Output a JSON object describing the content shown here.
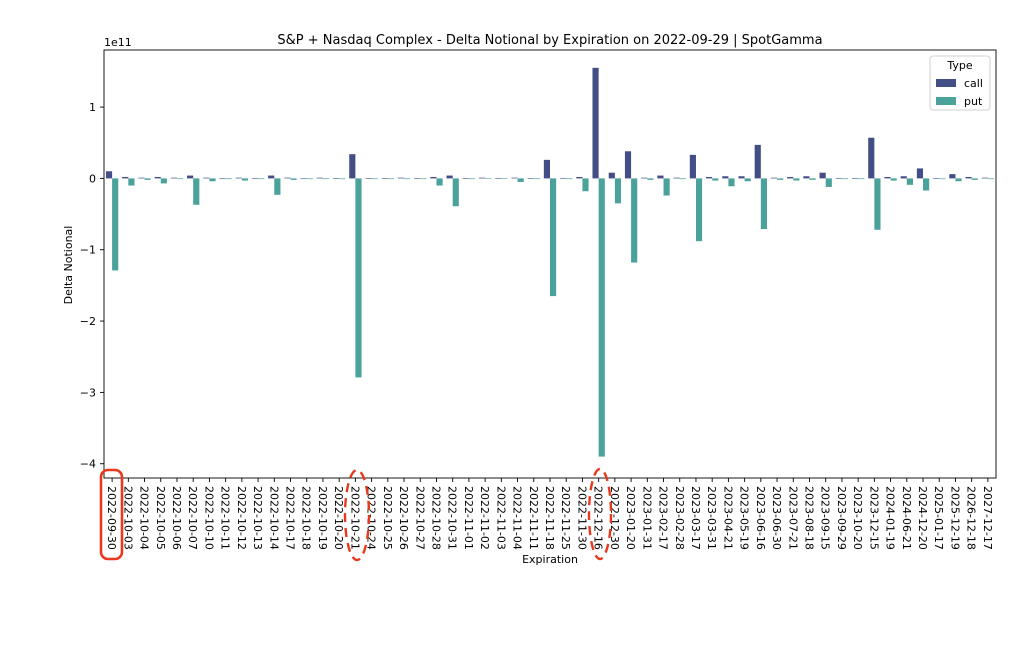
{
  "chart_data": {
    "type": "bar",
    "title": "S&P + Nasdaq Complex - Delta Notional by Expiration on 2022-09-29 | SpotGamma",
    "xlabel": "Expiration",
    "ylabel": "Delta Notional",
    "y_multiplier_label": "1e11",
    "ylim": [
      -4.2,
      1.8
    ],
    "yticks": [
      1,
      0,
      -1,
      -2,
      -3,
      -4
    ],
    "ytick_labels": [
      "1",
      "0",
      "−1",
      "−2",
      "−3",
      "−4"
    ],
    "legend": {
      "title": "Type",
      "placement": "top-right"
    },
    "categories": [
      "2022-09-30",
      "2022-10-03",
      "2022-10-04",
      "2022-10-05",
      "2022-10-06",
      "2022-10-07",
      "2022-10-10",
      "2022-10-11",
      "2022-10-12",
      "2022-10-13",
      "2022-10-14",
      "2022-10-17",
      "2022-10-18",
      "2022-10-19",
      "2022-10-20",
      "2022-10-21",
      "2022-10-24",
      "2022-10-25",
      "2022-10-26",
      "2022-10-27",
      "2022-10-28",
      "2022-10-31",
      "2022-11-01",
      "2022-11-02",
      "2022-11-03",
      "2022-11-04",
      "2022-11-11",
      "2022-11-18",
      "2022-11-25",
      "2022-11-30",
      "2022-12-16",
      "2022-12-30",
      "2023-01-20",
      "2023-01-31",
      "2023-02-17",
      "2023-02-28",
      "2023-03-17",
      "2023-03-31",
      "2023-04-21",
      "2023-05-19",
      "2023-06-16",
      "2023-06-30",
      "2023-07-21",
      "2023-08-18",
      "2023-09-15",
      "2023-09-29",
      "2023-10-20",
      "2023-12-15",
      "2024-01-19",
      "2024-06-21",
      "2024-12-20",
      "2025-01-17",
      "2025-12-19",
      "2026-12-18",
      "2027-12-17"
    ],
    "series": [
      {
        "name": "call",
        "color": "#434e87",
        "values": [
          0.1,
          0.02,
          0.01,
          0.02,
          0.01,
          0.04,
          0.01,
          0.0,
          0.01,
          0.0,
          0.04,
          0.01,
          0.0,
          0.01,
          0.0,
          0.34,
          0.0,
          0.0,
          0.01,
          0.0,
          0.02,
          0.04,
          0.0,
          0.01,
          0.0,
          0.01,
          0.0,
          0.26,
          0.0,
          0.02,
          1.55,
          0.08,
          0.38,
          0.01,
          0.04,
          0.01,
          0.33,
          0.02,
          0.03,
          0.03,
          0.47,
          0.01,
          0.02,
          0.03,
          0.08,
          0.0,
          0.0,
          0.57,
          0.02,
          0.03,
          0.14,
          0.0,
          0.06,
          0.02,
          0.01
        ]
      },
      {
        "name": "put",
        "color": "#4aa29b",
        "values": [
          -1.29,
          -0.1,
          -0.02,
          -0.07,
          -0.01,
          -0.37,
          -0.04,
          -0.01,
          -0.03,
          -0.01,
          -0.23,
          -0.02,
          -0.01,
          -0.01,
          -0.01,
          -2.79,
          -0.01,
          -0.01,
          -0.01,
          -0.01,
          -0.1,
          -0.39,
          -0.01,
          0.0,
          0.0,
          -0.05,
          -0.01,
          -1.65,
          -0.01,
          -0.18,
          -3.9,
          -0.35,
          -1.18,
          -0.02,
          -0.24,
          -0.01,
          -0.88,
          -0.03,
          -0.11,
          -0.04,
          -0.71,
          -0.02,
          -0.03,
          -0.02,
          -0.12,
          -0.01,
          -0.01,
          -0.72,
          -0.03,
          -0.09,
          -0.17,
          -0.01,
          -0.04,
          -0.02,
          -0.01
        ]
      }
    ]
  }
}
